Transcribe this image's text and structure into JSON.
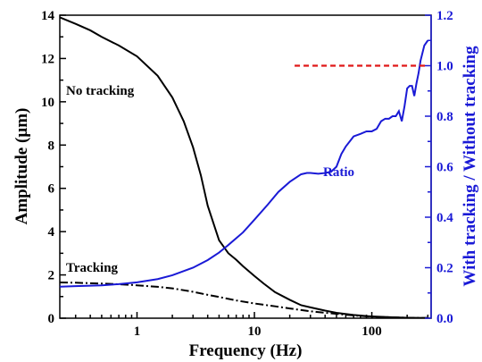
{
  "chart_data": {
    "type": "line",
    "x_scale": "log",
    "xlabel": "Frequency (Hz)",
    "ylabel": "Amplitude (µm)",
    "y2label": "With tracking / Without tracking",
    "xlim": [
      0.22,
      320
    ],
    "ylim": [
      0,
      14
    ],
    "y2lim": [
      0,
      1.2
    ],
    "x_ticks": [
      1,
      10,
      100
    ],
    "x_tick_labels": [
      "1",
      "10",
      "100"
    ],
    "y_ticks": [
      0,
      2,
      4,
      6,
      8,
      10,
      12,
      14
    ],
    "y_tick_labels": [
      "0",
      "2",
      "4",
      "6",
      "8",
      "10",
      "12",
      "14"
    ],
    "y2_ticks": [
      0,
      0.2,
      0.4,
      0.6,
      0.8,
      1.0,
      1.2
    ],
    "y2_tick_labels": [
      "0.0",
      "0.2",
      "0.4",
      "0.6",
      "0.8",
      "1.0",
      "1.2"
    ],
    "grid": false,
    "colors": {
      "no_tracking": "#000000",
      "tracking": "#000000",
      "ratio": "#1a1ad6",
      "reference": "#e01818",
      "right_axis": "#1a1ad6"
    },
    "annotations": {
      "no_tracking": "No tracking",
      "tracking": "Tracking",
      "ratio": "Ratio"
    },
    "series": [
      {
        "axis": "left",
        "style": "solid",
        "x": [
          0.22,
          0.3,
          0.4,
          0.5,
          0.7,
          1.0,
          1.5,
          2.0,
          2.5,
          3.0,
          3.5,
          4.0,
          5.0,
          6.0,
          7.0,
          8.0,
          10,
          12,
          15,
          20,
          25,
          30,
          40,
          50,
          70,
          100,
          150,
          200,
          300
        ],
        "values": [
          13.9,
          13.6,
          13.3,
          13.0,
          12.6,
          12.1,
          11.2,
          10.2,
          9.1,
          7.9,
          6.6,
          5.2,
          3.6,
          3.0,
          2.7,
          2.4,
          1.95,
          1.6,
          1.2,
          0.85,
          0.6,
          0.5,
          0.35,
          0.25,
          0.15,
          0.08,
          0.04,
          0.02,
          0.01
        ]
      },
      {
        "axis": "left",
        "style": "dashdot",
        "x": [
          0.22,
          0.3,
          0.5,
          0.7,
          1.0,
          1.5,
          2.0,
          3.0,
          4.0,
          5.0,
          7.0,
          10,
          15,
          20,
          30,
          50,
          70,
          100,
          150,
          200,
          300
        ],
        "values": [
          1.65,
          1.64,
          1.6,
          1.57,
          1.52,
          1.45,
          1.38,
          1.22,
          1.08,
          0.98,
          0.82,
          0.68,
          0.55,
          0.45,
          0.32,
          0.2,
          0.13,
          0.07,
          0.04,
          0.02,
          0.01
        ]
      },
      {
        "axis": "right",
        "style": "solid",
        "x": [
          0.22,
          0.3,
          0.5,
          0.7,
          1.0,
          1.5,
          2.0,
          3.0,
          4.0,
          5.0,
          6.0,
          8.0,
          10,
          13,
          16,
          20,
          25,
          28,
          30,
          35,
          40,
          45,
          50,
          55,
          60,
          70,
          80,
          90,
          100,
          110,
          120,
          130,
          140,
          150,
          160,
          165,
          170,
          180,
          190,
          200,
          210,
          220,
          230,
          240,
          250,
          260,
          280,
          300
        ],
        "values": [
          0.125,
          0.127,
          0.13,
          0.135,
          0.142,
          0.155,
          0.17,
          0.2,
          0.23,
          0.26,
          0.29,
          0.34,
          0.39,
          0.45,
          0.5,
          0.54,
          0.57,
          0.575,
          0.575,
          0.572,
          0.575,
          0.58,
          0.6,
          0.65,
          0.68,
          0.72,
          0.73,
          0.74,
          0.74,
          0.75,
          0.78,
          0.79,
          0.79,
          0.8,
          0.8,
          0.81,
          0.82,
          0.78,
          0.84,
          0.91,
          0.92,
          0.92,
          0.88,
          0.93,
          0.97,
          1.02,
          1.08,
          1.1
        ]
      },
      {
        "axis": "right",
        "style": "dashed",
        "x": [
          22,
          300
        ],
        "values": [
          1.0,
          1.0
        ]
      }
    ]
  }
}
